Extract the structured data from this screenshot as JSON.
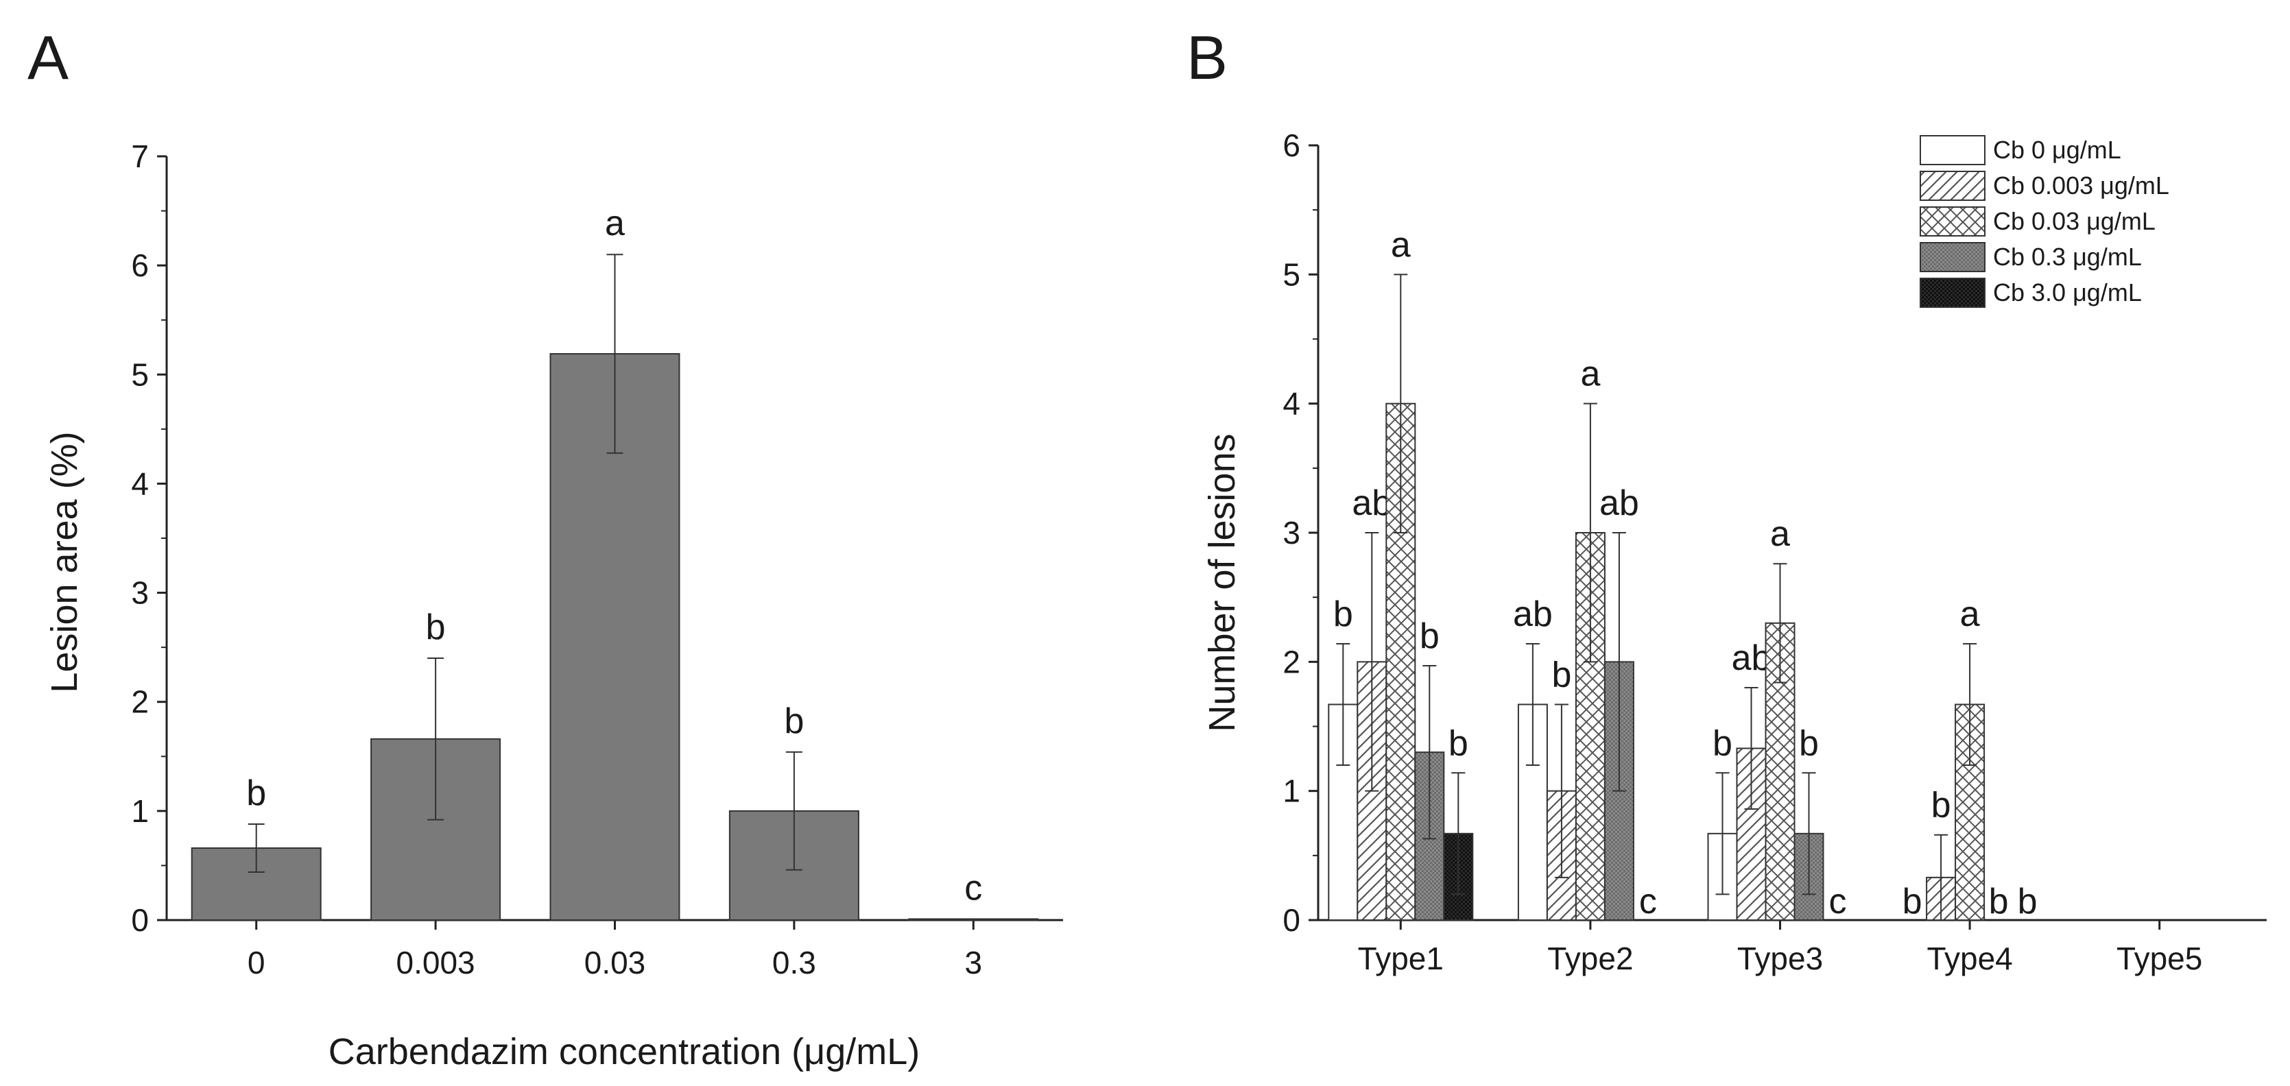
{
  "chart_data": [
    {
      "panel": "A",
      "type": "bar",
      "categories": [
        "0",
        "0.003",
        "0.03",
        "0.3",
        "3"
      ],
      "values": [
        0.66,
        1.66,
        5.19,
        1.0,
        0.01
      ],
      "errors": [
        0.22,
        0.74,
        0.91,
        0.54,
        0
      ],
      "letters": [
        "b",
        "b",
        "a",
        "b",
        "c"
      ],
      "title": "",
      "xlabel": "Carbendazim concentration (μg/mL)",
      "ylabel": "Lesion area (%)",
      "ylim": [
        0,
        7
      ],
      "yticks": [
        "0",
        "1",
        "2",
        "3",
        "4",
        "5",
        "6",
        "7"
      ],
      "bar_color": "#7a7a7a"
    },
    {
      "panel": "B",
      "type": "bar",
      "categories": [
        "Type1",
        "Type2",
        "Type3",
        "Type4",
        "Type5"
      ],
      "ylabel": "Number of lesions",
      "xlabel": "",
      "ylim": [
        0,
        6
      ],
      "yticks": [
        "0",
        "1",
        "2",
        "3",
        "4",
        "5",
        "6"
      ],
      "legend_position": "top-right",
      "series": [
        {
          "name": "Cb 0 μg/mL",
          "pattern": "blank",
          "values": [
            1.67,
            1.67,
            0.67,
            0,
            0
          ],
          "errors": [
            0.47,
            0.47,
            0.47,
            0,
            0
          ],
          "letters": [
            "b",
            "ab",
            "b",
            "b",
            ""
          ]
        },
        {
          "name": "Cb 0.003 μg/mL",
          "pattern": "hatch",
          "values": [
            2.0,
            1.0,
            1.33,
            0.33,
            0
          ],
          "errors": [
            1.0,
            0.67,
            0.47,
            0.33,
            0
          ],
          "letters": [
            "ab",
            "b",
            "ab",
            "b",
            ""
          ]
        },
        {
          "name": "Cb 0.03 μg/mL",
          "pattern": "crosshatch",
          "values": [
            4.0,
            3.0,
            2.3,
            1.67,
            0
          ],
          "errors": [
            1.0,
            1.0,
            0.46,
            0.47,
            0
          ],
          "letters": [
            "a",
            "a",
            "a",
            "a",
            ""
          ]
        },
        {
          "name": "Cb 0.3 μg/mL",
          "pattern": "gray",
          "values": [
            1.3,
            2.0,
            0.67,
            0,
            0
          ],
          "errors": [
            0.67,
            1.0,
            0.47,
            0,
            0
          ],
          "letters": [
            "b",
            "ab",
            "b",
            "b",
            ""
          ]
        },
        {
          "name": "Cb 3.0 μg/mL",
          "pattern": "black",
          "values": [
            0.67,
            0,
            0,
            0,
            0
          ],
          "errors": [
            0.47,
            0,
            0,
            0,
            0
          ],
          "letters": [
            "b",
            "c",
            "c",
            "b",
            ""
          ]
        }
      ]
    }
  ]
}
